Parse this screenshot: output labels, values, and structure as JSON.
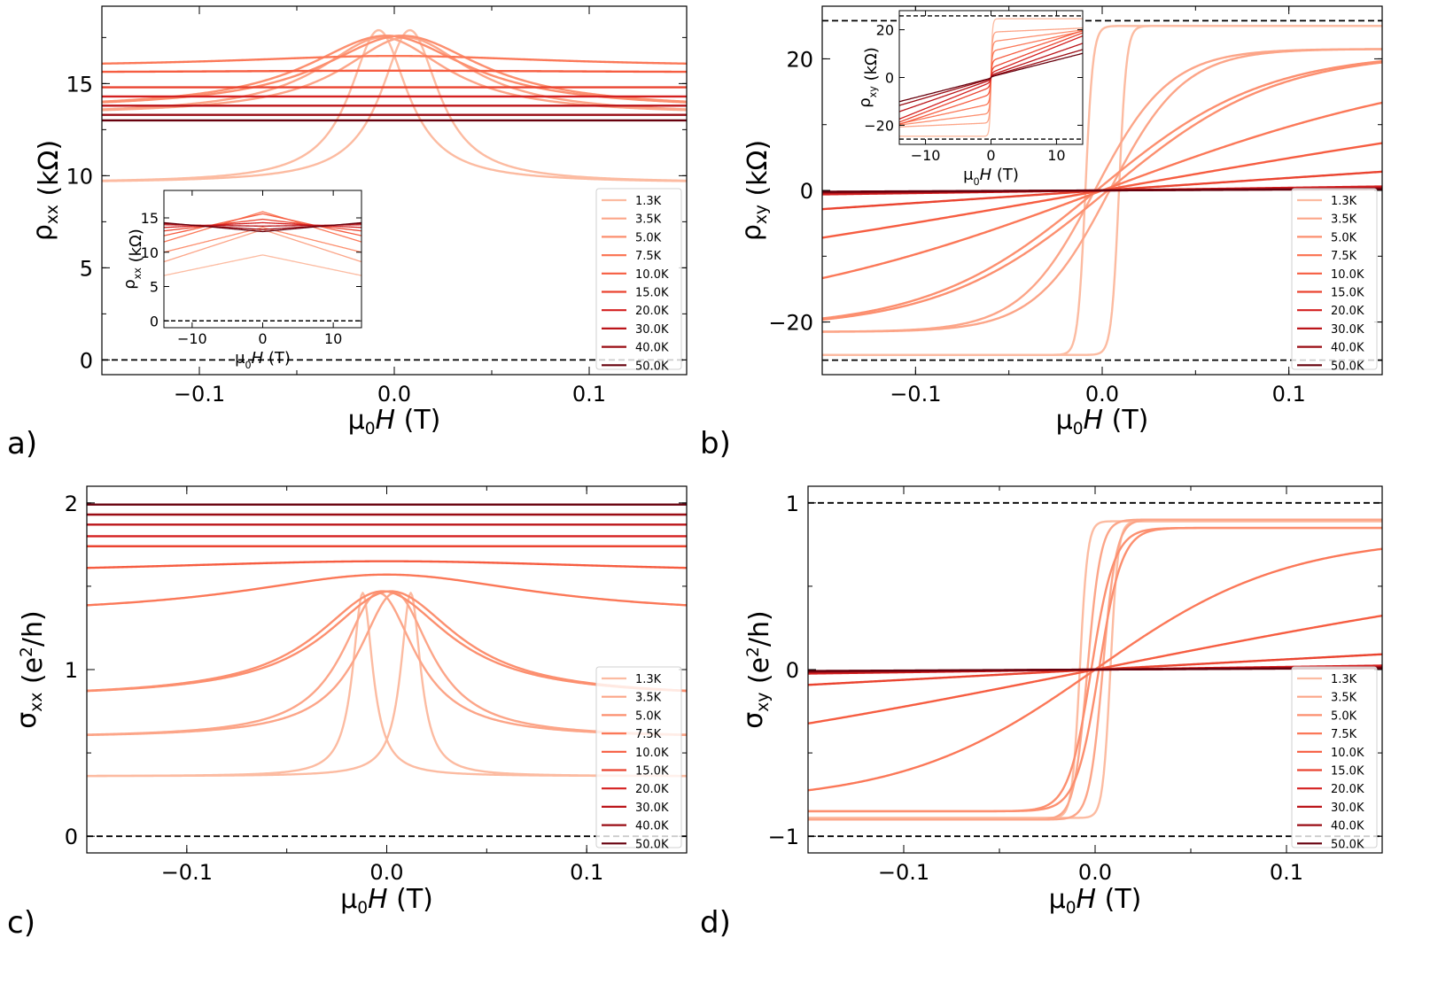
{
  "figure": {
    "temperatures": [
      "1.3K",
      "3.5K",
      "5.0K",
      "7.5K",
      "10.0K",
      "15.0K",
      "20.0K",
      "30.0K",
      "40.0K",
      "50.0K"
    ],
    "colors": [
      "#fcbba1",
      "#fca588",
      "#fc8f6f",
      "#fb7858",
      "#f65d41",
      "#ea4430",
      "#d42020",
      "#bb151a",
      "#9a0c14",
      "#67000d"
    ]
  },
  "chart_data": [
    {
      "id": "a",
      "type": "line",
      "panel_label": "a)",
      "xlabel": "μ0H (T)",
      "ylabel": "ρxx (kΩ)",
      "xlim": [
        -0.15,
        0.15
      ],
      "ylim": [
        -0.8,
        19.2
      ],
      "xticks": [
        -0.1,
        0.0,
        0.1
      ],
      "xtick_labels": [
        "−0.1",
        "0.0",
        "0.1"
      ],
      "yticks": [
        0,
        5,
        10,
        15
      ],
      "ytick_labels": [
        "0",
        "5",
        "10",
        "15"
      ],
      "reference_lines": [
        0
      ],
      "legend": "bottom-right",
      "series_model": "peak",
      "series": [
        {
          "name": "1.3K",
          "base": 9.6,
          "peak": 17.9,
          "width": 0.018,
          "sweep_offset": 0.008
        },
        {
          "name": "3.5K",
          "base": 13.3,
          "peak": 17.5,
          "width": 0.04,
          "sweep_offset": 0.006
        },
        {
          "name": "5.0K",
          "base": 13.6,
          "peak": 17.6,
          "width": 0.05,
          "sweep_offset": 0.004
        },
        {
          "name": "7.5K",
          "base": 15.9,
          "peak": 16.5,
          "width": 0.1,
          "sweep_offset": 0.0
        },
        {
          "name": "10.0K",
          "base": 15.6,
          "peak": 15.7,
          "width": 0.12,
          "sweep_offset": 0.0
        },
        {
          "name": "15.0K",
          "base": 14.8,
          "peak": 14.8,
          "width": 0.12,
          "sweep_offset": 0.0
        },
        {
          "name": "20.0K",
          "base": 14.3,
          "peak": 14.3,
          "width": 0.12,
          "sweep_offset": 0.0
        },
        {
          "name": "30.0K",
          "base": 13.8,
          "peak": 13.8,
          "width": 0.12,
          "sweep_offset": 0.0
        },
        {
          "name": "40.0K",
          "base": 13.3,
          "peak": 13.3,
          "width": 0.12,
          "sweep_offset": 0.0
        },
        {
          "name": "50.0K",
          "base": 13.0,
          "peak": 13.0,
          "width": 0.12,
          "sweep_offset": 0.0
        }
      ],
      "inset": {
        "type": "line",
        "xlabel": "μ0H (T)",
        "ylabel": "ρxx (kΩ)",
        "xlim": [
          -14,
          14
        ],
        "ylim": [
          -1,
          19
        ],
        "xticks": [
          -10,
          0,
          10
        ],
        "xtick_labels": [
          "−10",
          "0",
          "10"
        ],
        "yticks": [
          0,
          5,
          10,
          15
        ],
        "ytick_labels": [
          "0",
          "5",
          "10",
          "15"
        ],
        "reference_lines": [
          0
        ],
        "series_model": "vshape",
        "series": [
          {
            "name": "1.3K",
            "center": 9.6,
            "edge": 6.6
          },
          {
            "name": "3.5K",
            "center": 13.3,
            "edge": 8.6
          },
          {
            "name": "5.0K",
            "center": 13.6,
            "edge": 10.0
          },
          {
            "name": "7.5K",
            "center": 15.9,
            "edge": 11.5
          },
          {
            "name": "10.0K",
            "center": 15.6,
            "edge": 12.4
          },
          {
            "name": "15.0K",
            "center": 14.8,
            "edge": 13.1
          },
          {
            "name": "20.0K",
            "center": 14.3,
            "edge": 13.6
          },
          {
            "name": "30.0K",
            "center": 13.8,
            "edge": 14.0
          },
          {
            "name": "40.0K",
            "center": 13.3,
            "edge": 14.2
          },
          {
            "name": "50.0K",
            "center": 13.0,
            "edge": 14.3
          }
        ]
      }
    },
    {
      "id": "b",
      "type": "line",
      "panel_label": "b)",
      "xlabel": "μ0H (T)",
      "ylabel": "ρxy (kΩ)",
      "xlim": [
        -0.15,
        0.15
      ],
      "ylim": [
        -28,
        28
      ],
      "xticks": [
        -0.1,
        0.0,
        0.1
      ],
      "xtick_labels": [
        "−0.1",
        "0.0",
        "0.1"
      ],
      "yticks": [
        -20,
        0,
        20
      ],
      "ytick_labels": [
        "−20",
        "0",
        "20"
      ],
      "reference_lines": [
        -25.8,
        25.8
      ],
      "legend": "bottom-right",
      "series_model": "tanh",
      "series": [
        {
          "name": "1.3K",
          "sat": 25.0,
          "width": 0.004,
          "sweep_offset": 0.009
        },
        {
          "name": "3.5K",
          "sat": 21.5,
          "width": 0.04,
          "sweep_offset": 0.004
        },
        {
          "name": "5.0K",
          "sat": 21.0,
          "width": 0.09,
          "sweep_offset": 0.003
        },
        {
          "name": "7.5K",
          "sat": 21.0,
          "width": 0.2,
          "sweep_offset": 0.0
        },
        {
          "name": "10.0K",
          "sat": 21.0,
          "width": 0.42,
          "sweep_offset": 0.0
        },
        {
          "name": "15.0K",
          "sat": 21.0,
          "width": 1.1,
          "sweep_offset": 0.0
        },
        {
          "name": "20.0K",
          "sat": 21.0,
          "width": 5.2,
          "sweep_offset": 0.0
        },
        {
          "name": "30.0K",
          "sat": 21.0,
          "width": 8.0,
          "sweep_offset": 0.0
        },
        {
          "name": "40.0K",
          "sat": 21.0,
          "width": 12.0,
          "sweep_offset": 0.0
        },
        {
          "name": "50.0K",
          "sat": 21.0,
          "width": 16.0,
          "sweep_offset": 0.0
        }
      ],
      "inset": {
        "type": "line",
        "xlabel": "μ0H (T)",
        "ylabel": "ρxy (kΩ)",
        "xlim": [
          -14,
          14
        ],
        "ylim": [
          -28,
          28
        ],
        "xticks": [
          -10,
          0,
          10
        ],
        "xtick_labels": [
          "−10",
          "0",
          "10"
        ],
        "yticks": [
          -20,
          0,
          20
        ],
        "ytick_labels": [
          "−20",
          "0",
          "20"
        ],
        "reference_lines": [
          -25.8,
          25.8
        ],
        "series_model": "hall_inset",
        "series": [
          {
            "name": "1.3K",
            "jump": 24.6,
            "slope": 0.0
          },
          {
            "name": "3.5K",
            "jump": 19.0,
            "slope": 0.12
          },
          {
            "name": "5.0K",
            "jump": 15.0,
            "slope": 0.35
          },
          {
            "name": "7.5K",
            "jump": 11.0,
            "slope": 0.6
          },
          {
            "name": "10.0K",
            "jump": 7.0,
            "slope": 0.9
          },
          {
            "name": "15.0K",
            "jump": 4.0,
            "slope": 1.05
          },
          {
            "name": "20.0K",
            "jump": 2.0,
            "slope": 1.1
          },
          {
            "name": "30.0K",
            "jump": 1.0,
            "slope": 0.95
          },
          {
            "name": "40.0K",
            "jump": 0.5,
            "slope": 0.8
          },
          {
            "name": "50.0K",
            "jump": 0.3,
            "slope": 0.7
          }
        ]
      }
    },
    {
      "id": "c",
      "type": "line",
      "panel_label": "c)",
      "xlabel": "μ0H (T)",
      "ylabel": "σxx (e2/h)",
      "xlim": [
        -0.15,
        0.15
      ],
      "ylim": [
        -0.1,
        2.1
      ],
      "xticks": [
        -0.1,
        0.0,
        0.1
      ],
      "xtick_labels": [
        "−0.1",
        "0.0",
        "0.1"
      ],
      "yticks": [
        0,
        1,
        2
      ],
      "ytick_labels": [
        "0",
        "1",
        "2"
      ],
      "reference_lines": [
        0
      ],
      "legend": "bottom-right",
      "series_model": "peak",
      "series": [
        {
          "name": "1.3K",
          "base": 0.36,
          "peak": 1.46,
          "width": 0.006,
          "sweep_offset": 0.012
        },
        {
          "name": "3.5K",
          "base": 0.59,
          "peak": 1.46,
          "width": 0.022,
          "sweep_offset": 0.004
        },
        {
          "name": "5.0K",
          "base": 0.83,
          "peak": 1.47,
          "width": 0.04,
          "sweep_offset": 0.002
        },
        {
          "name": "7.5K",
          "base": 1.32,
          "peak": 1.57,
          "width": 0.09,
          "sweep_offset": 0.0
        },
        {
          "name": "10.0K",
          "base": 1.57,
          "peak": 1.65,
          "width": 0.15,
          "sweep_offset": 0.0
        },
        {
          "name": "15.0K",
          "base": 1.74,
          "peak": 1.74,
          "width": 0.15,
          "sweep_offset": 0.0
        },
        {
          "name": "20.0K",
          "base": 1.8,
          "peak": 1.8,
          "width": 0.15,
          "sweep_offset": 0.0
        },
        {
          "name": "30.0K",
          "base": 1.87,
          "peak": 1.87,
          "width": 0.15,
          "sweep_offset": 0.0
        },
        {
          "name": "40.0K",
          "base": 1.93,
          "peak": 1.93,
          "width": 0.15,
          "sweep_offset": 0.0
        },
        {
          "name": "50.0K",
          "base": 1.99,
          "peak": 1.99,
          "width": 0.15,
          "sweep_offset": 0.0
        }
      ]
    },
    {
      "id": "d",
      "type": "line",
      "panel_label": "d)",
      "xlabel": "μ0H (T)",
      "ylabel": "σxy (e2/h)",
      "xlim": [
        -0.15,
        0.15
      ],
      "ylim": [
        -1.1,
        1.1
      ],
      "xticks": [
        -0.1,
        0.0,
        0.1
      ],
      "xtick_labels": [
        "−0.1",
        "0.0",
        "0.1"
      ],
      "yticks": [
        -1,
        0,
        1
      ],
      "ytick_labels": [
        "−1",
        "0",
        "1"
      ],
      "reference_lines": [
        -1,
        1
      ],
      "legend": "bottom-right",
      "series_model": "tanh",
      "series": [
        {
          "name": "1.3K",
          "sat": 0.89,
          "width": 0.004,
          "sweep_offset": 0.008
        },
        {
          "name": "3.5K",
          "sat": 0.9,
          "width": 0.007,
          "sweep_offset": 0.004
        },
        {
          "name": "5.0K",
          "sat": 0.85,
          "width": 0.012,
          "sweep_offset": 0.002
        },
        {
          "name": "7.5K",
          "sat": 0.8,
          "width": 0.1,
          "sweep_offset": 0.0
        },
        {
          "name": "10.0K",
          "sat": 0.8,
          "width": 0.35,
          "sweep_offset": 0.0
        },
        {
          "name": "15.0K",
          "sat": 0.8,
          "width": 1.3,
          "sweep_offset": 0.0
        },
        {
          "name": "20.0K",
          "sat": 0.8,
          "width": 5.0,
          "sweep_offset": 0.0
        },
        {
          "name": "30.0K",
          "sat": 0.8,
          "width": 8.0,
          "sweep_offset": 0.0
        },
        {
          "name": "40.0K",
          "sat": 0.8,
          "width": 10.0,
          "sweep_offset": 0.0
        },
        {
          "name": "50.0K",
          "sat": 0.8,
          "width": 14.0,
          "sweep_offset": 0.0
        }
      ]
    }
  ]
}
